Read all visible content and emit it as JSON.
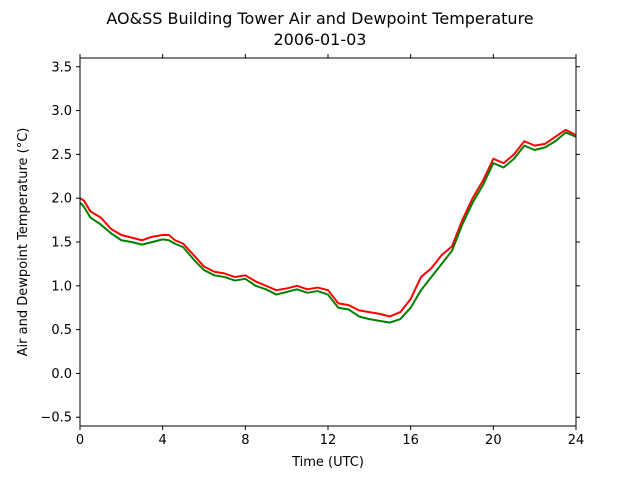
{
  "chart_data": {
    "type": "line",
    "title": "AO&SS Building Tower Air and Dewpoint Temperature",
    "subtitle": "2006-01-03",
    "xlabel": "Time (UTC)",
    "ylabel": "Air and Dewpoint Temperature (°C)",
    "xlim": [
      0,
      24
    ],
    "ylim": [
      -0.6,
      3.6
    ],
    "x_ticks": [
      0,
      4,
      8,
      12,
      16,
      20,
      24
    ],
    "y_ticks": [
      -0.5,
      0.0,
      0.5,
      1.0,
      1.5,
      2.0,
      2.5,
      3.0,
      3.5
    ],
    "x_tick_labels": [
      "0",
      "4",
      "8",
      "12",
      "16",
      "20",
      "24"
    ],
    "y_tick_labels": [
      "−0.5",
      "0.0",
      "0.5",
      "1.0",
      "1.5",
      "2.0",
      "2.5",
      "3.0",
      "3.5"
    ],
    "grid": false,
    "legend": "none",
    "series": [
      {
        "color": "#ff0000",
        "x": [
          0.0,
          0.2,
          0.5,
          1.0,
          1.5,
          2.0,
          2.5,
          3.0,
          3.5,
          4.0,
          4.3,
          4.6,
          5.0,
          5.5,
          6.0,
          6.5,
          7.0,
          7.5,
          8.0,
          8.5,
          9.0,
          9.5,
          10.0,
          10.5,
          11.0,
          11.5,
          12.0,
          12.5,
          13.0,
          13.5,
          14.0,
          14.5,
          15.0,
          15.5,
          16.0,
          16.5,
          17.0,
          17.5,
          18.0,
          18.5,
          19.0,
          19.5,
          20.0,
          20.5,
          21.0,
          21.5,
          22.0,
          22.5,
          23.0,
          23.5,
          24.0
        ],
        "y": [
          2.0,
          1.97,
          1.85,
          1.78,
          1.65,
          1.58,
          1.55,
          1.52,
          1.56,
          1.58,
          1.58,
          1.52,
          1.48,
          1.35,
          1.22,
          1.16,
          1.14,
          1.1,
          1.12,
          1.05,
          1.0,
          0.95,
          0.97,
          1.0,
          0.96,
          0.98,
          0.95,
          0.8,
          0.78,
          0.72,
          0.7,
          0.68,
          0.65,
          0.7,
          0.85,
          1.1,
          1.2,
          1.35,
          1.45,
          1.75,
          2.0,
          2.2,
          2.45,
          2.4,
          2.5,
          2.65,
          2.6,
          2.62,
          2.7,
          2.78,
          2.72
        ]
      },
      {
        "color": "#008000",
        "x": [
          0.0,
          0.2,
          0.5,
          1.0,
          1.5,
          2.0,
          2.5,
          3.0,
          3.5,
          4.0,
          4.3,
          4.6,
          5.0,
          5.5,
          6.0,
          6.5,
          7.0,
          7.5,
          8.0,
          8.5,
          9.0,
          9.5,
          10.0,
          10.5,
          11.0,
          11.5,
          12.0,
          12.5,
          13.0,
          13.5,
          14.0,
          14.5,
          15.0,
          15.5,
          16.0,
          16.5,
          17.0,
          17.5,
          18.0,
          18.5,
          19.0,
          19.5,
          20.0,
          20.5,
          21.0,
          21.5,
          22.0,
          22.5,
          23.0,
          23.5,
          24.0
        ],
        "y": [
          1.95,
          1.9,
          1.78,
          1.7,
          1.6,
          1.52,
          1.5,
          1.47,
          1.5,
          1.53,
          1.52,
          1.48,
          1.44,
          1.3,
          1.18,
          1.12,
          1.1,
          1.06,
          1.08,
          1.0,
          0.96,
          0.9,
          0.93,
          0.96,
          0.92,
          0.94,
          0.9,
          0.75,
          0.73,
          0.65,
          0.62,
          0.6,
          0.58,
          0.62,
          0.75,
          0.95,
          1.1,
          1.25,
          1.4,
          1.7,
          1.95,
          2.15,
          2.4,
          2.35,
          2.45,
          2.6,
          2.55,
          2.58,
          2.65,
          2.75,
          2.7
        ]
      }
    ]
  }
}
